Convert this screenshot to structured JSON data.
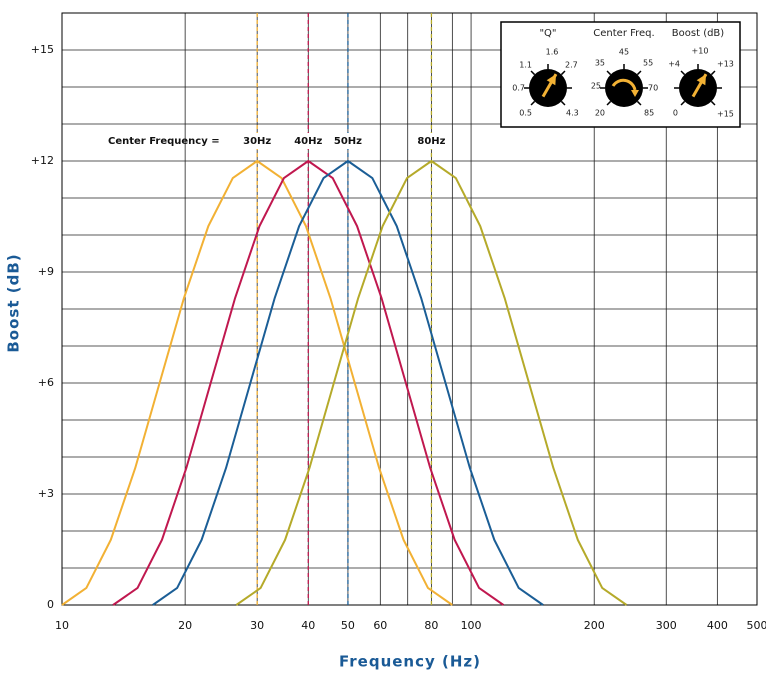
{
  "chart_data": {
    "type": "line",
    "x_label": "Frequency (Hz)",
    "y_label": "Boost (dB)",
    "x_log": true,
    "grid": true,
    "xlim": [
      10,
      500
    ],
    "xticks": [
      10,
      20,
      30,
      40,
      50,
      60,
      80,
      100,
      200,
      300,
      400,
      500
    ],
    "x_minor_grid": [
      70,
      90
    ],
    "ylim": [
      0,
      16
    ],
    "yticks": [
      0,
      {
        "value": 3,
        "label": "+3"
      },
      {
        "value": 6,
        "label": "+6"
      },
      {
        "value": 9,
        "label": "+9"
      },
      {
        "value": 12,
        "label": "+12"
      },
      {
        "value": 15,
        "label": "+15"
      }
    ],
    "y_minor_grid": [
      1,
      2,
      4,
      5,
      7,
      8,
      10,
      11,
      13,
      14
    ],
    "annotation": "Center Frequency =",
    "series": [
      {
        "name": "30Hz",
        "color": "#f2b134",
        "center": 30,
        "x": [
          10,
          11.47,
          13.16,
          15.1,
          17.32,
          19.87,
          22.79,
          26.15,
          30,
          34.42,
          39.48,
          45.29,
          51.96,
          59.61,
          68.39,
          78.45,
          90
        ],
        "values": [
          0,
          0.46,
          1.76,
          3.7,
          6,
          8.3,
          10.24,
          11.54,
          12,
          11.54,
          10.24,
          8.3,
          6,
          3.7,
          1.76,
          0.46,
          0
        ]
      },
      {
        "name": "40Hz",
        "color": "#c0184f",
        "center": 40,
        "x": [
          13.33,
          15.3,
          17.55,
          20.13,
          23.09,
          26.5,
          30.39,
          34.87,
          40,
          45.89,
          52.64,
          60.39,
          69.28,
          79.48,
          91.18,
          104.6,
          120
        ],
        "values": [
          0,
          0.46,
          1.76,
          3.7,
          6,
          8.3,
          10.24,
          11.54,
          12,
          11.54,
          10.24,
          8.3,
          6,
          3.7,
          1.76,
          0.46,
          0
        ]
      },
      {
        "name": "50Hz",
        "color": "#1b5e96",
        "center": 50,
        "x": [
          16.67,
          19.12,
          21.94,
          25.17,
          28.87,
          33.12,
          37.99,
          43.59,
          50,
          57.36,
          65.81,
          75.49,
          86.6,
          99.35,
          113.98,
          130.75,
          150
        ],
        "values": [
          0,
          0.46,
          1.76,
          3.7,
          6,
          8.3,
          10.24,
          11.54,
          12,
          11.54,
          10.24,
          8.3,
          6,
          3.7,
          1.76,
          0.46,
          0
        ]
      },
      {
        "name": "80Hz",
        "color": "#b5aa2a",
        "center": 80,
        "x": [
          26.67,
          30.59,
          35.1,
          40.26,
          46.19,
          52.99,
          60.78,
          69.74,
          80,
          91.78,
          105.29,
          120.78,
          138.56,
          158.96,
          182.36,
          209.2,
          240
        ],
        "values": [
          0,
          0.46,
          1.76,
          3.7,
          6,
          8.3,
          10.24,
          11.54,
          12,
          11.54,
          10.24,
          8.3,
          6,
          3.7,
          1.76,
          0.46,
          0
        ]
      }
    ],
    "knob_panel": {
      "q": {
        "title": "\"Q\"",
        "labels": [
          "1.6",
          "1.1",
          "2.7",
          "0.7",
          "0.5",
          "4.3"
        ]
      },
      "freq": {
        "title": "Center Freq.",
        "labels": [
          "45",
          "35",
          "55",
          "25",
          "70",
          "20",
          "85"
        ]
      },
      "boost": {
        "title": "Boost (dB)",
        "labels": [
          "+10",
          "+4",
          "+13",
          "0",
          "+15"
        ]
      }
    }
  }
}
